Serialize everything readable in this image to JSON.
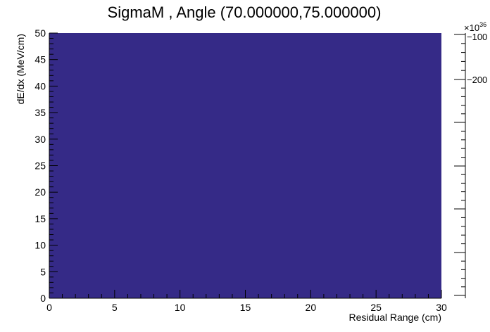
{
  "chart_data": {
    "type": "heatmap",
    "title": "SigmaM , Angle (70.000000,75.000000)",
    "xlabel": "Residual Range (cm)",
    "ylabel": "dE/dx (MeV/cm)",
    "xlim": [
      0,
      30
    ],
    "ylim": [
      0,
      50
    ],
    "x_ticks": [
      "0",
      "5",
      "10",
      "15",
      "20",
      "25",
      "30"
    ],
    "y_ticks": [
      "0",
      "5",
      "10",
      "15",
      "20",
      "25",
      "30",
      "35",
      "40",
      "45",
      "50"
    ],
    "fill_color": "#352a87",
    "colorbar": {
      "exponent_label": "×10",
      "exponent_power": "36",
      "tick_labels": [
        "−100",
        "−200"
      ]
    },
    "grid": false
  }
}
